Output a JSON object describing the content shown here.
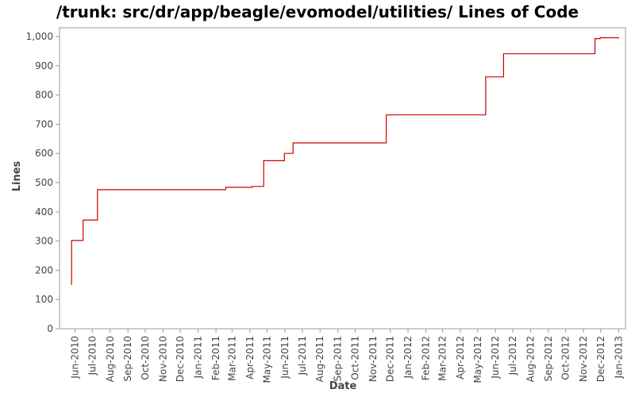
{
  "chart_data": {
    "type": "line",
    "title": "/trunk: src/dr/app/beagle/evomodel/utilities/ Lines of Code",
    "xlabel": "Date",
    "ylabel": "Lines",
    "grid": false,
    "legend": "none",
    "line_color": "#cc0000",
    "step": true,
    "xlim": [
      "2010-05-05",
      "2013-01-13"
    ],
    "ylim": [
      0,
      1030
    ],
    "y_ticks": [
      0,
      100,
      200,
      300,
      400,
      500,
      600,
      700,
      800,
      900,
      1000
    ],
    "y_tick_labels": [
      "0",
      "100",
      "200",
      "300",
      "400",
      "500",
      "600",
      "700",
      "800",
      "900",
      "1,000"
    ],
    "x_ticks": [
      {
        "date": "2010-06-01",
        "label": "Jun-2010"
      },
      {
        "date": "2010-07-01",
        "label": "Jul-2010"
      },
      {
        "date": "2010-08-01",
        "label": "Aug-2010"
      },
      {
        "date": "2010-09-01",
        "label": "Sep-2010"
      },
      {
        "date": "2010-10-01",
        "label": "Oct-2010"
      },
      {
        "date": "2010-11-01",
        "label": "Nov-2010"
      },
      {
        "date": "2010-12-01",
        "label": "Dec-2010"
      },
      {
        "date": "2011-01-01",
        "label": "Jan-2011"
      },
      {
        "date": "2011-02-01",
        "label": "Feb-2011"
      },
      {
        "date": "2011-03-01",
        "label": "Mar-2011"
      },
      {
        "date": "2011-04-01",
        "label": "Apr-2011"
      },
      {
        "date": "2011-05-01",
        "label": "May-2011"
      },
      {
        "date": "2011-06-01",
        "label": "Jun-2011"
      },
      {
        "date": "2011-07-01",
        "label": "Jul-2011"
      },
      {
        "date": "2011-08-01",
        "label": "Aug-2011"
      },
      {
        "date": "2011-09-01",
        "label": "Sep-2011"
      },
      {
        "date": "2011-10-01",
        "label": "Oct-2011"
      },
      {
        "date": "2011-11-01",
        "label": "Nov-2011"
      },
      {
        "date": "2011-12-01",
        "label": "Dec-2011"
      },
      {
        "date": "2012-01-01",
        "label": "Jan-2012"
      },
      {
        "date": "2012-02-01",
        "label": "Feb-2012"
      },
      {
        "date": "2012-03-01",
        "label": "Mar-2012"
      },
      {
        "date": "2012-04-01",
        "label": "Apr-2012"
      },
      {
        "date": "2012-05-01",
        "label": "May-2012"
      },
      {
        "date": "2012-06-01",
        "label": "Jun-2012"
      },
      {
        "date": "2012-07-01",
        "label": "Jul-2012"
      },
      {
        "date": "2012-08-01",
        "label": "Aug-2012"
      },
      {
        "date": "2012-09-01",
        "label": "Sep-2012"
      },
      {
        "date": "2012-10-01",
        "label": "Oct-2012"
      },
      {
        "date": "2012-11-01",
        "label": "Nov-2012"
      },
      {
        "date": "2012-12-01",
        "label": "Dec-2012"
      },
      {
        "date": "2013-01-01",
        "label": "Jan-2013"
      }
    ],
    "series": [
      {
        "points": [
          {
            "x": "2010-05-25",
            "y": 152
          },
          {
            "x": "2010-05-26",
            "y": 302
          },
          {
            "x": "2010-06-15",
            "y": 372
          },
          {
            "x": "2010-07-10",
            "y": 476
          },
          {
            "x": "2011-02-18",
            "y": 484
          },
          {
            "x": "2011-04-05",
            "y": 487
          },
          {
            "x": "2011-04-25",
            "y": 575
          },
          {
            "x": "2011-05-31",
            "y": 600
          },
          {
            "x": "2011-06-15",
            "y": 636
          },
          {
            "x": "2011-11-24",
            "y": 732
          },
          {
            "x": "2012-05-15",
            "y": 862
          },
          {
            "x": "2012-06-15",
            "y": 941
          },
          {
            "x": "2012-11-21",
            "y": 993
          },
          {
            "x": "2012-11-30",
            "y": 996
          },
          {
            "x": "2013-01-01",
            "y": 993
          }
        ]
      }
    ]
  }
}
